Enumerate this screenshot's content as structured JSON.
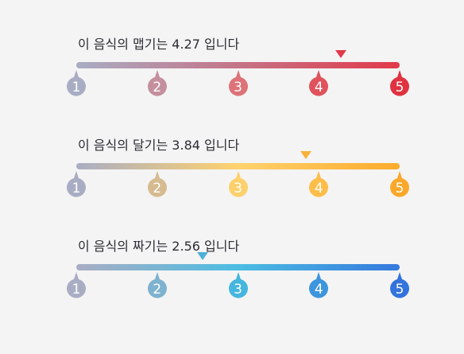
{
  "scales": [
    {
      "title": "이 음식의 맵기는 4.27 입니다",
      "value": 4.27,
      "marker_color": "#e23a4a",
      "gradient": [
        "#a9adc4",
        "#e23a4a"
      ],
      "ticks": [
        {
          "label": "1",
          "color": "#a9adc4"
        },
        {
          "label": "2",
          "color": "#c4909e"
        },
        {
          "label": "3",
          "color": "#dd7278"
        },
        {
          "label": "4",
          "color": "#e0525c"
        },
        {
          "label": "5",
          "color": "#e0323f"
        }
      ]
    },
    {
      "title": "이 음식의 달기는 3.84 입니다",
      "value": 3.84,
      "marker_color": "#f7b239",
      "gradient": [
        "#a9adc4",
        "#ffd26e",
        "#fbab2b"
      ],
      "ticks": [
        {
          "label": "1",
          "color": "#a9adc4"
        },
        {
          "label": "2",
          "color": "#d6bb91"
        },
        {
          "label": "3",
          "color": "#fcd06b"
        },
        {
          "label": "4",
          "color": "#fdbd48"
        },
        {
          "label": "5",
          "color": "#fba82a"
        }
      ]
    },
    {
      "title": "이 음식의 짜기는 2.56 입니다",
      "value": 2.56,
      "marker_color": "#4fb0d8",
      "gradient": [
        "#a9adc4",
        "#4cbde2",
        "#3579dd"
      ],
      "ticks": [
        {
          "label": "1",
          "color": "#a9adc4"
        },
        {
          "label": "2",
          "color": "#7eb2cf"
        },
        {
          "label": "3",
          "color": "#45b6dd"
        },
        {
          "label": "4",
          "color": "#3c95dd"
        },
        {
          "label": "5",
          "color": "#3373dc"
        }
      ]
    }
  ]
}
